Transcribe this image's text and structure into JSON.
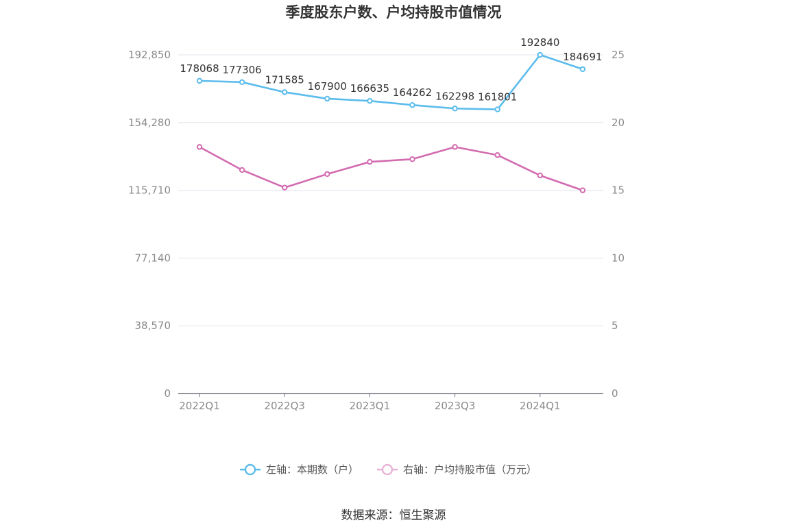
{
  "chart_data": {
    "type": "line",
    "title": "季度股东户数、户均持股市值情况",
    "categories": [
      "2022Q1",
      "2022Q2",
      "2022Q3",
      "2022Q4",
      "2023Q1",
      "2023Q2",
      "2023Q3",
      "2023Q4",
      "2024Q1",
      "2024Q2"
    ],
    "x_tick_labels": [
      "2022Q1",
      "2022Q3",
      "2023Q1",
      "2023Q3",
      "2024Q1"
    ],
    "y_left": {
      "ticks": [
        "0",
        "38,570",
        "77,140",
        "115,710",
        "154,280",
        "192,850"
      ],
      "lim": [
        0,
        192850
      ]
    },
    "y_right": {
      "ticks": [
        "0",
        "5",
        "10",
        "15",
        "20",
        "25"
      ],
      "lim": [
        0,
        25
      ]
    },
    "grid": true,
    "legend_position": "bottom",
    "series": [
      {
        "name": "左轴：本期数（户）",
        "axis": "left",
        "color": "#5bbcec",
        "values": [
          178068,
          177306,
          171585,
          167900,
          166635,
          164262,
          162298,
          161801,
          192840,
          184691
        ],
        "labels": [
          "178068",
          "177306",
          "171585",
          "167900",
          "166635",
          "164262",
          "162298",
          "161801",
          "192840",
          "184691"
        ]
      },
      {
        "name": "右轴：户均持股市值（万元）",
        "axis": "right",
        "color": "#d36bb0",
        "values": [
          18.2,
          16.5,
          15.2,
          16.2,
          17.1,
          17.3,
          18.2,
          17.6,
          16.1,
          15.0
        ]
      }
    ]
  },
  "source": "数据来源：恒生聚源"
}
